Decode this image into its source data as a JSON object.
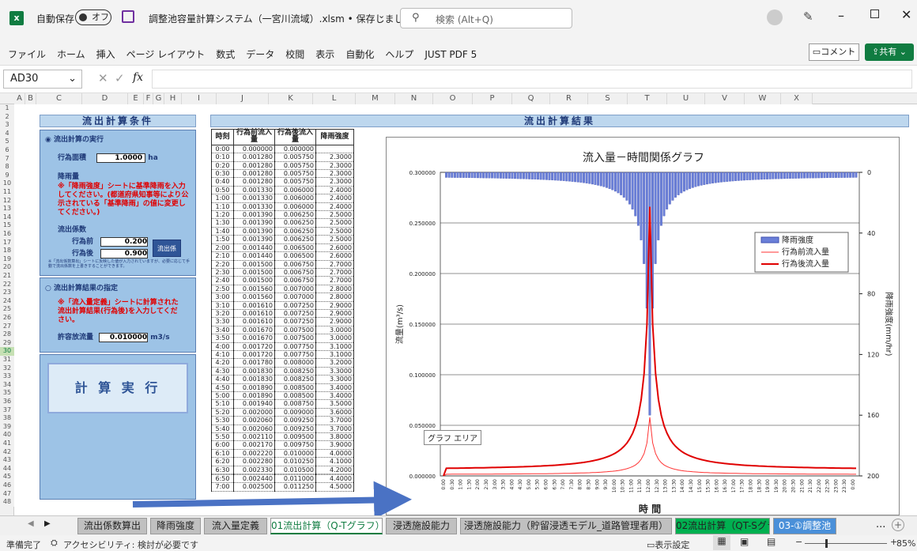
{
  "app": {
    "autosave_label": "自動保存",
    "autosave_state": "オフ",
    "file_title": "調整池容量計算システム（一宮川流域）.xlsm • 保存しました",
    "search_placeholder": "検索 (Alt+Q)"
  },
  "ribbon": {
    "menus": [
      "ファイル",
      "ホーム",
      "挿入",
      "ページ レイアウト",
      "数式",
      "データ",
      "校閲",
      "表示",
      "自動化",
      "ヘルプ",
      "JUST PDF 5"
    ],
    "comment": "コメント",
    "share": "共有"
  },
  "formula_bar": {
    "cell_ref": "AD30",
    "fx": "fx",
    "content": ""
  },
  "columns": [
    "A",
    "B",
    "C",
    "D",
    "E",
    "F",
    "G",
    "H",
    "I",
    "J",
    "K",
    "L",
    "M",
    "N",
    "O",
    "P",
    "Q",
    "R",
    "S",
    "T",
    "U",
    "V",
    "W",
    "X"
  ],
  "left_panel": {
    "header": "流出計算条件",
    "opt1": "流出計算の実行",
    "area_label": "行為面積",
    "area_value": "1.0000",
    "area_unit": "ha",
    "rain_label": "降雨量",
    "rain_note": "※「降雨強度」シートに基準降雨を入力してください。(都道府県知事等により公示されている「基準降雨」の値に変更してください。)",
    "coef_label": "流出係数",
    "coef_before_label": "行為前",
    "coef_before": "0.200",
    "coef_after_label": "行為後",
    "coef_after": "0.900",
    "coef_button": "流出係",
    "coef_note": "※「流出係数算出」シートに反映した値が入力されていますが、必要に応じて手動で流出係数を上書きすることができます。",
    "opt2": "流出計算結果の指定",
    "opt2_note": "※「流入量定義」シートに計算された流出計算結果(行為後)を入力してください。",
    "allow_label": "許容放流量",
    "allow_value": "0.010000",
    "allow_unit": "m3/s",
    "calc_button": "計 算 実 行"
  },
  "right_header": "流出計算結果",
  "table": {
    "headers": [
      "時刻",
      "行為前流入量",
      "行為後流入量",
      "降雨強度"
    ],
    "rows": [
      [
        "0:00",
        "0.000000",
        "0.000000",
        ""
      ],
      [
        "0:10",
        "0.001280",
        "0.005750",
        "2.3000"
      ],
      [
        "0:20",
        "0.001280",
        "0.005750",
        "2.3000"
      ],
      [
        "0:30",
        "0.001280",
        "0.005750",
        "2.3000"
      ],
      [
        "0:40",
        "0.001280",
        "0.005750",
        "2.3000"
      ],
      [
        "0:50",
        "0.001330",
        "0.006000",
        "2.4000"
      ],
      [
        "1:00",
        "0.001330",
        "0.006000",
        "2.4000"
      ],
      [
        "1:10",
        "0.001330",
        "0.006000",
        "2.4000"
      ],
      [
        "1:20",
        "0.001390",
        "0.006250",
        "2.5000"
      ],
      [
        "1:30",
        "0.001390",
        "0.006250",
        "2.5000"
      ],
      [
        "1:40",
        "0.001390",
        "0.006250",
        "2.5000"
      ],
      [
        "1:50",
        "0.001390",
        "0.006250",
        "2.5000"
      ],
      [
        "2:00",
        "0.001440",
        "0.006500",
        "2.6000"
      ],
      [
        "2:10",
        "0.001440",
        "0.006500",
        "2.6000"
      ],
      [
        "2:20",
        "0.001500",
        "0.006750",
        "2.7000"
      ],
      [
        "2:30",
        "0.001500",
        "0.006750",
        "2.7000"
      ],
      [
        "2:40",
        "0.001500",
        "0.006750",
        "2.7000"
      ],
      [
        "2:50",
        "0.001560",
        "0.007000",
        "2.8000"
      ],
      [
        "3:00",
        "0.001560",
        "0.007000",
        "2.8000"
      ],
      [
        "3:10",
        "0.001610",
        "0.007250",
        "2.9000"
      ],
      [
        "3:20",
        "0.001610",
        "0.007250",
        "2.9000"
      ],
      [
        "3:30",
        "0.001610",
        "0.007250",
        "2.9000"
      ],
      [
        "3:40",
        "0.001670",
        "0.007500",
        "3.0000"
      ],
      [
        "3:50",
        "0.001670",
        "0.007500",
        "3.0000"
      ],
      [
        "4:00",
        "0.001720",
        "0.007750",
        "3.1000"
      ],
      [
        "4:10",
        "0.001720",
        "0.007750",
        "3.1000"
      ],
      [
        "4:20",
        "0.001780",
        "0.008000",
        "3.2000"
      ],
      [
        "4:30",
        "0.001830",
        "0.008250",
        "3.3000"
      ],
      [
        "4:40",
        "0.001830",
        "0.008250",
        "3.3000"
      ],
      [
        "4:50",
        "0.001890",
        "0.008500",
        "3.4000"
      ],
      [
        "5:00",
        "0.001890",
        "0.008500",
        "3.4000"
      ],
      [
        "5:10",
        "0.001940",
        "0.008750",
        "3.5000"
      ],
      [
        "5:20",
        "0.002000",
        "0.009000",
        "3.6000"
      ],
      [
        "5:30",
        "0.002060",
        "0.009250",
        "3.7000"
      ],
      [
        "5:40",
        "0.002060",
        "0.009250",
        "3.7000"
      ],
      [
        "5:50",
        "0.002110",
        "0.009500",
        "3.8000"
      ],
      [
        "6:00",
        "0.002170",
        "0.009750",
        "3.9000"
      ],
      [
        "6:10",
        "0.002220",
        "0.010000",
        "4.0000"
      ],
      [
        "6:20",
        "0.002280",
        "0.010250",
        "4.1000"
      ],
      [
        "6:30",
        "0.002330",
        "0.010500",
        "4.2000"
      ],
      [
        "",
        "",
        "",
        ""
      ],
      [
        "6:50",
        "0.002440",
        "0.011000",
        "4.4000"
      ],
      [
        "7:00",
        "0.002500",
        "0.011250",
        "4.5000"
      ]
    ]
  },
  "chart_data": {
    "type": "line",
    "title": "流入量－時間関係グラフ",
    "xlabel": "時 間",
    "ylabel": "流量(m³/s)",
    "y2label": "降雨強度(mm/hr)",
    "ylim": [
      0,
      0.3
    ],
    "y2lim": [
      0,
      200
    ],
    "y_ticks": [
      "0.000000",
      "0.050000",
      "0.100000",
      "0.150000",
      "0.200000",
      "0.250000",
      "0.300000"
    ],
    "y2_ticks": [
      "0",
      "40",
      "80",
      "120",
      "160",
      "200"
    ],
    "x_ticks": [
      "0:00",
      "0:30",
      "1:00",
      "1:30",
      "2:00",
      "2:30",
      "3:00",
      "3:30",
      "4:00",
      "4:30",
      "5:00",
      "5:30",
      "6:00",
      "6:30",
      "7:00",
      "7:30",
      "8:00",
      "8:30",
      "9:00",
      "9:30",
      "10:00",
      "10:30",
      "11:00",
      "11:30",
      "12:00",
      "12:30",
      "13:00",
      "13:30",
      "14:00",
      "14:30",
      "15:00",
      "15:30",
      "16:00",
      "16:30",
      "17:00",
      "17:30",
      "18:00",
      "18:30",
      "19:00",
      "19:30",
      "20:00",
      "20:30",
      "21:00",
      "21:30",
      "22:00",
      "22:30",
      "23:00",
      "23:30",
      "0:00"
    ],
    "legend_position": "right",
    "series": [
      {
        "name": "降雨強度",
        "kind": "bar",
        "peak": 160,
        "base": 2.3,
        "color": "#6a7fd8"
      },
      {
        "name": "行為前流入量",
        "kind": "line",
        "peak": 0.058,
        "base": 0.00128,
        "color": "#ff3333"
      },
      {
        "name": "行為後流入量",
        "kind": "line",
        "peak": 0.266,
        "base": 0.00575,
        "color": "#e00000"
      }
    ],
    "tooltip": "グラフ エリア"
  },
  "sheet_tabs": [
    {
      "label": "流出係数算出",
      "color": "#c0c0c0"
    },
    {
      "label": "降雨強度",
      "color": "#c0c0c0"
    },
    {
      "label": "流入量定義",
      "color": "#c0c0c0"
    },
    {
      "label": "01流出計算（Q-Tグラフ）",
      "color": "#ffffff",
      "active": true
    },
    {
      "label": "浸透施設能力",
      "color": "#c0c0c0"
    },
    {
      "label": "浸透施設能力（貯留浸透モデル_道路管理者用）",
      "color": "#c0c0c0"
    },
    {
      "label": "02流出計算（QT-Sグラフ）",
      "color": "#00b050"
    },
    {
      "label": "03-①調整池",
      "color": "#4a90d9"
    }
  ],
  "status": {
    "ready": "準備完了",
    "accessibility": "アクセシビリティ: 検討が必要です",
    "display_settings": "表示設定",
    "zoom": "85%"
  }
}
